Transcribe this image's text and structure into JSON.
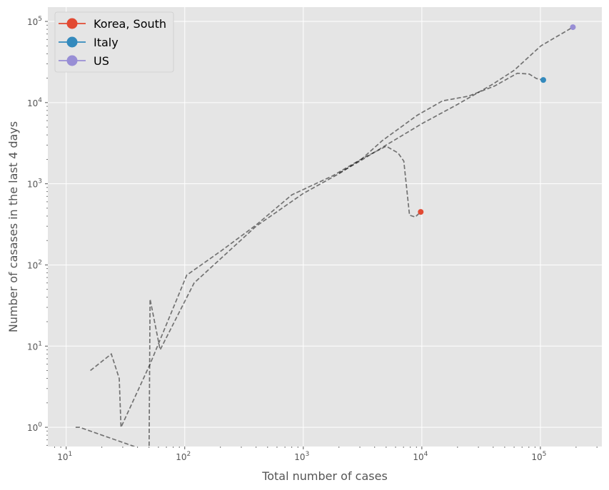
{
  "chart_data": {
    "type": "line",
    "xlabel": "Total number of cases",
    "ylabel": "Number of casases in the last 4 days",
    "x_scale": "log",
    "y_scale": "log",
    "xlim": [
      7,
      330000
    ],
    "ylim": [
      0.58,
      150000
    ],
    "grid": true,
    "legend_position": "top-left",
    "x_ticks": [
      10,
      100,
      1000,
      10000,
      100000
    ],
    "y_ticks": [
      1,
      10,
      100,
      1000,
      10000,
      100000
    ],
    "series": [
      {
        "name": "Korea, South",
        "color": "#E24A33",
        "points": [
          [
            16,
            5
          ],
          [
            24,
            8
          ],
          [
            28,
            4
          ],
          [
            29,
            1
          ],
          [
            51,
            6
          ],
          [
            104,
            75
          ],
          [
            204,
            150
          ],
          [
            400,
            310
          ],
          [
            800,
            730
          ],
          [
            1766,
            1250
          ],
          [
            3150,
            2050
          ],
          [
            5000,
            2900
          ],
          [
            6300,
            2400
          ],
          [
            7041,
            1900
          ],
          [
            7869,
            410
          ],
          [
            8799,
            390
          ],
          [
            9786,
            450
          ]
        ],
        "end": [
          9786,
          450
        ]
      },
      {
        "name": "Italy",
        "color": "#348ABD",
        "points": [
          [
            12,
            1
          ],
          [
            13,
            1
          ],
          [
            50,
            0.5
          ],
          [
            51,
            38
          ],
          [
            62,
            9
          ],
          [
            120,
            60
          ],
          [
            400,
            300
          ],
          [
            1000,
            760
          ],
          [
            2036,
            1350
          ],
          [
            3089,
            2000
          ],
          [
            4636,
            3400
          ],
          [
            9172,
            7000
          ],
          [
            14955,
            10500
          ],
          [
            24747,
            12000
          ],
          [
            41035,
            16000
          ],
          [
            63927,
            23000
          ],
          [
            80589,
            22500
          ],
          [
            92472,
            19800
          ],
          [
            105792,
            19000
          ]
        ],
        "end": [
          105792,
          19000
        ]
      },
      {
        "name": "US",
        "color": "#988ED5",
        "points": [
          [
            2000,
            1350
          ],
          [
            3000,
            1900
          ],
          [
            5000,
            3000
          ],
          [
            10000,
            5500
          ],
          [
            20000,
            9500
          ],
          [
            40000,
            17000
          ],
          [
            60000,
            25000
          ],
          [
            101000,
            50000
          ],
          [
            188000,
            85000
          ]
        ],
        "end": [
          188000,
          85000
        ]
      }
    ]
  }
}
